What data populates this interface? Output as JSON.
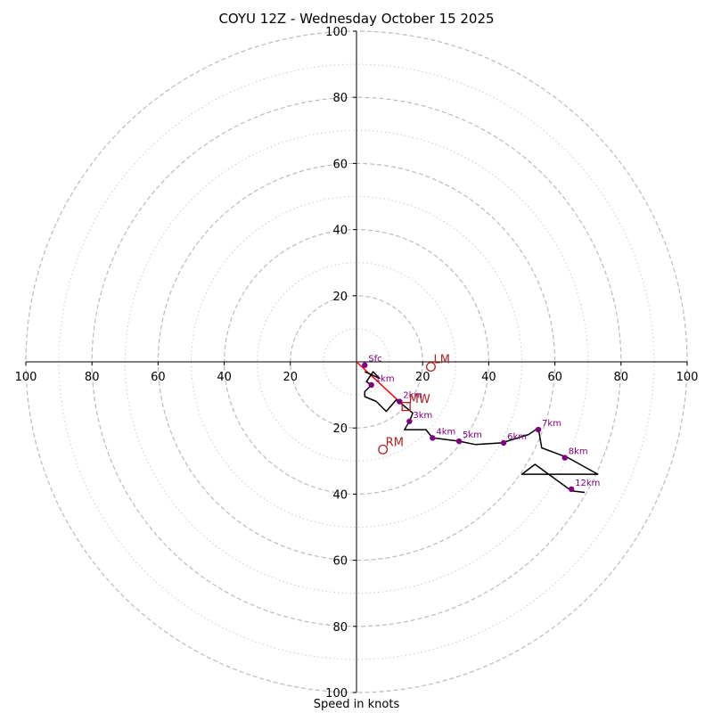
{
  "chart_data": {
    "type": "hodograph",
    "title": "COYU 12Z - Wednesday October 15 2025",
    "xlabel": "Speed in knots",
    "axis_range": [
      -100,
      100
    ],
    "ring_major": [
      20,
      40,
      60,
      80,
      100
    ],
    "ring_minor": [
      10,
      30,
      50,
      70,
      90
    ],
    "tick_labels": [
      "100",
      "80",
      "60",
      "40",
      "20",
      "20",
      "40",
      "60",
      "80",
      "100"
    ],
    "y_tick_labels": [
      "100",
      "80",
      "60",
      "40",
      "20",
      "20",
      "40",
      "60",
      "80",
      "100"
    ],
    "trace": [
      [
        2.5,
        -3
      ],
      [
        7,
        -5
      ],
      [
        5,
        -3
      ],
      [
        3,
        -6
      ],
      [
        4.5,
        -7
      ],
      [
        2.5,
        -9
      ],
      [
        2.5,
        -10.5
      ],
      [
        6,
        -12
      ],
      [
        9,
        -15
      ],
      [
        12,
        -11.5
      ],
      [
        14,
        -13
      ],
      [
        17,
        -15.5
      ],
      [
        16,
        -18
      ],
      [
        14.5,
        -20.5
      ],
      [
        21,
        -20.5
      ],
      [
        23,
        -23
      ],
      [
        31,
        -24
      ],
      [
        36,
        -25
      ],
      [
        44,
        -24.5
      ],
      [
        52,
        -22
      ],
      [
        55,
        -20
      ],
      [
        56,
        -26
      ],
      [
        64,
        -29
      ],
      [
        73,
        -34
      ],
      [
        50,
        -34
      ],
      [
        54,
        -31
      ],
      [
        65,
        -39
      ],
      [
        69,
        -39.5
      ]
    ],
    "height_points": [
      {
        "label": "Sfc",
        "u": 2.5,
        "v": -1
      },
      {
        "label": "1km",
        "u": 4.5,
        "v": -7
      },
      {
        "label": "2km",
        "u": 13,
        "v": -12
      },
      {
        "label": "3km",
        "u": 16,
        "v": -18
      },
      {
        "label": "4km",
        "u": 23,
        "v": -23
      },
      {
        "label": "5km",
        "u": 31,
        "v": -24
      },
      {
        "label": "6km",
        "u": 44.5,
        "v": -24.5
      },
      {
        "label": "7km",
        "u": 55,
        "v": -20.5
      },
      {
        "label": "8km",
        "u": 63,
        "v": -29
      },
      {
        "label": "12km",
        "u": 65,
        "v": -38.5
      }
    ],
    "motion_line": [
      [
        0,
        0
      ],
      [
        14,
        -13
      ]
    ],
    "markers": [
      {
        "label": "LM",
        "u": 22.5,
        "v": -1.5,
        "shape": "circle"
      },
      {
        "label": "MW",
        "u": 15,
        "v": -13.5,
        "shape": "square"
      },
      {
        "label": "RM",
        "u": 8,
        "v": -26.5,
        "shape": "circle"
      }
    ],
    "colors": {
      "trace": "#000000",
      "points": "#800080",
      "motion": "#ff0000",
      "markers": "#b22222",
      "grid": "#bbbbbb"
    }
  }
}
